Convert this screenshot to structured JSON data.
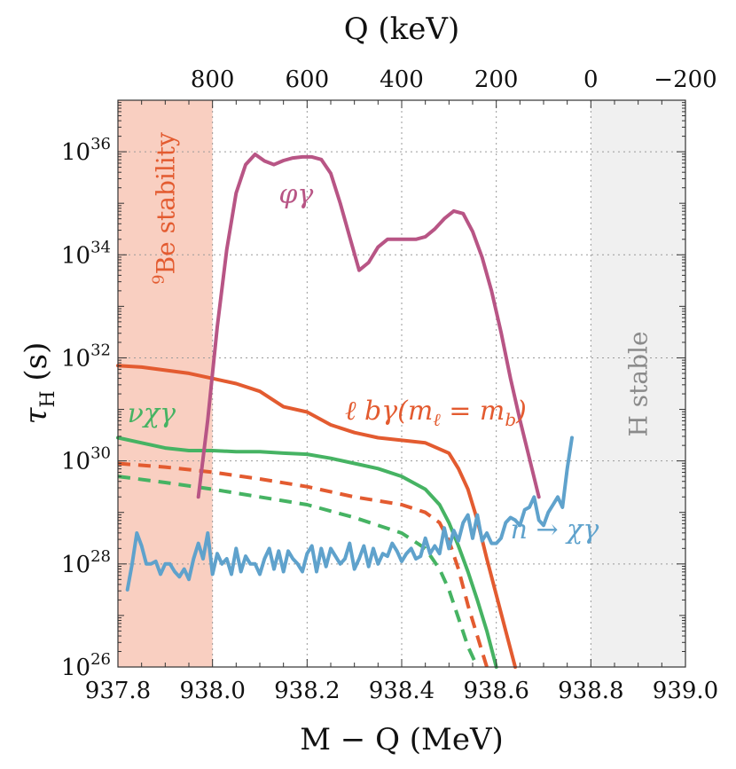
{
  "chart_data": {
    "type": "line",
    "xlabel": "M − Q (MeV)",
    "x2label": "Q (keV)",
    "ylabel": "τ_H (s)",
    "xlim": [
      937.8,
      939.0
    ],
    "ylim_log10": [
      26,
      37
    ],
    "x_log": false,
    "y_log": true,
    "grid": true,
    "x_ticks": [
      {
        "value": 937.8,
        "label": "937.8"
      },
      {
        "value": 938.0,
        "label": "938.0"
      },
      {
        "value": 938.2,
        "label": "938.2"
      },
      {
        "value": 938.4,
        "label": "938.4"
      },
      {
        "value": 938.6,
        "label": "938.6"
      },
      {
        "value": 938.8,
        "label": "938.8"
      },
      {
        "value": 939.0,
        "label": "939.0"
      }
    ],
    "x2_ticks": [
      {
        "value": 938.0,
        "label": "800"
      },
      {
        "value": 938.2,
        "label": "600"
      },
      {
        "value": 938.4,
        "label": "400"
      },
      {
        "value": 938.6,
        "label": "200"
      },
      {
        "value": 938.8,
        "label": "0"
      },
      {
        "value": 939.0,
        "label": "−200"
      }
    ],
    "y_ticks": [
      {
        "exp": 26,
        "base": "10",
        "sup": "26"
      },
      {
        "exp": 28,
        "base": "10",
        "sup": "28"
      },
      {
        "exp": 30,
        "base": "10",
        "sup": "30"
      },
      {
        "exp": 32,
        "base": "10",
        "sup": "32"
      },
      {
        "exp": 34,
        "base": "10",
        "sup": "34"
      },
      {
        "exp": 36,
        "base": "10",
        "sup": "36"
      }
    ],
    "bands": [
      {
        "x0": 937.8,
        "x1": 938.0,
        "color": "#f9cfc1",
        "label_sup": "9",
        "label": "Be stability",
        "label_color": "#e35b30"
      },
      {
        "x0": 938.8,
        "x1": 939.0,
        "color": "#f0f0f0",
        "label_sup": "",
        "label": "H stable",
        "label_color": "#8a8a8a"
      }
    ],
    "series": [
      {
        "key": "phi_gamma",
        "color": "#b85585",
        "dash": false,
        "label": "φγ",
        "x": [
          937.97,
          937.99,
          938.01,
          938.03,
          938.05,
          938.07,
          938.09,
          938.11,
          938.13,
          938.15,
          938.17,
          938.19,
          938.21,
          938.23,
          938.25,
          938.27,
          938.29,
          938.31,
          938.33,
          938.35,
          938.37,
          938.39,
          938.41,
          938.43,
          938.45,
          938.47,
          938.49,
          938.51,
          938.53,
          938.55,
          938.57,
          938.59,
          938.61,
          938.63,
          938.65,
          938.67,
          938.69
        ],
        "logy": [
          29.3,
          30.8,
          32.6,
          34.1,
          35.2,
          35.75,
          35.95,
          35.82,
          35.75,
          35.83,
          35.88,
          35.9,
          35.9,
          35.85,
          35.58,
          35.0,
          34.35,
          33.7,
          33.85,
          34.15,
          34.3,
          34.3,
          34.3,
          34.3,
          34.35,
          34.5,
          34.7,
          34.85,
          34.8,
          34.45,
          33.95,
          33.3,
          32.5,
          31.6,
          30.8,
          30.05,
          29.3
        ]
      },
      {
        "key": "lb_gamma",
        "color": "#e35b30",
        "dash": false,
        "label": "ℓ bγ(m_ℓ = m_b)",
        "x": [
          937.8,
          937.85,
          937.9,
          937.95,
          938.0,
          938.05,
          938.1,
          938.15,
          938.2,
          938.25,
          938.3,
          938.35,
          938.4,
          938.45,
          938.5,
          938.52,
          938.54,
          938.56,
          938.58,
          938.6,
          938.62,
          938.64
        ],
        "logy": [
          31.85,
          31.82,
          31.76,
          31.7,
          31.6,
          31.5,
          31.35,
          31.05,
          30.95,
          30.7,
          30.55,
          30.45,
          30.4,
          30.35,
          30.15,
          29.85,
          29.45,
          28.85,
          28.1,
          27.4,
          26.7,
          26.0
        ]
      },
      {
        "key": "nu_chi_gamma",
        "color": "#46b363",
        "dash": false,
        "label": "νχγ",
        "x": [
          937.8,
          937.85,
          937.9,
          937.95,
          938.0,
          938.05,
          938.1,
          938.15,
          938.2,
          938.25,
          938.3,
          938.35,
          938.4,
          938.45,
          938.48,
          938.5,
          938.52,
          938.54,
          938.56,
          938.58,
          938.6
        ],
        "logy": [
          30.45,
          30.35,
          30.25,
          30.2,
          30.2,
          30.18,
          30.18,
          30.15,
          30.13,
          30.05,
          29.95,
          29.85,
          29.7,
          29.45,
          29.15,
          28.8,
          28.35,
          27.85,
          27.3,
          26.7,
          26.0
        ]
      },
      {
        "key": "lb_gamma_dashed",
        "color": "#e35b30",
        "dash": true,
        "label": "",
        "x": [
          937.8,
          937.9,
          938.0,
          938.1,
          938.2,
          938.3,
          938.4,
          938.45,
          938.48,
          938.5,
          938.52,
          938.54,
          938.56,
          938.58
        ],
        "logy": [
          29.95,
          29.88,
          29.78,
          29.65,
          29.5,
          29.3,
          29.15,
          29.0,
          28.8,
          28.45,
          27.9,
          27.2,
          26.6,
          26.0
        ]
      },
      {
        "key": "nu_chi_gamma_dashed",
        "color": "#46b363",
        "dash": true,
        "label": "",
        "x": [
          937.8,
          937.9,
          938.0,
          938.1,
          938.2,
          938.3,
          938.4,
          938.45,
          938.48,
          938.5,
          938.52,
          938.54,
          938.56
        ],
        "logy": [
          29.7,
          29.58,
          29.45,
          29.3,
          29.15,
          28.9,
          28.6,
          28.3,
          27.9,
          27.5,
          26.95,
          26.4,
          26.0
        ]
      },
      {
        "key": "n_chi_gamma",
        "color": "#5fa2cc",
        "dash": false,
        "label": "n → χγ",
        "x": [
          937.82,
          937.83,
          937.84,
          937.85,
          937.86,
          937.87,
          937.88,
          937.89,
          937.9,
          937.91,
          937.92,
          937.93,
          937.94,
          937.95,
          937.96,
          937.97,
          937.98,
          937.99,
          938.0,
          938.01,
          938.02,
          938.03,
          938.04,
          938.05,
          938.06,
          938.07,
          938.08,
          938.09,
          938.1,
          938.11,
          938.12,
          938.13,
          938.14,
          938.15,
          938.16,
          938.17,
          938.18,
          938.19,
          938.2,
          938.21,
          938.22,
          938.23,
          938.24,
          938.25,
          938.26,
          938.27,
          938.28,
          938.29,
          938.3,
          938.31,
          938.32,
          938.33,
          938.34,
          938.35,
          938.36,
          938.37,
          938.38,
          938.39,
          938.4,
          938.41,
          938.42,
          938.43,
          938.44,
          938.45,
          938.46,
          938.47,
          938.48,
          938.49,
          938.5,
          938.51,
          938.52,
          938.53,
          938.54,
          938.55,
          938.56,
          938.57,
          938.58,
          938.59,
          938.6,
          938.61,
          938.62,
          938.63,
          938.64,
          938.65,
          938.66,
          938.67,
          938.68,
          938.69,
          938.7,
          938.71,
          938.72,
          938.73,
          938.74,
          938.75,
          938.76
        ],
        "logy": [
          27.5,
          28.0,
          28.6,
          28.35,
          28.0,
          28.0,
          28.05,
          27.8,
          28.0,
          28.0,
          27.85,
          27.75,
          27.9,
          27.7,
          28.1,
          28.4,
          28.1,
          28.6,
          27.8,
          28.2,
          28.0,
          28.1,
          27.8,
          28.3,
          27.85,
          28.15,
          28.0,
          28.0,
          27.8,
          28.1,
          28.3,
          27.9,
          28.25,
          27.85,
          28.25,
          28.1,
          28.0,
          27.85,
          28.2,
          28.35,
          27.85,
          28.3,
          27.95,
          28.3,
          28.15,
          28.0,
          28.1,
          28.4,
          27.9,
          28.1,
          28.35,
          27.95,
          28.3,
          28.0,
          28.2,
          28.15,
          28.4,
          28.25,
          28.05,
          28.2,
          28.3,
          28.1,
          28.15,
          28.5,
          28.2,
          28.35,
          28.2,
          28.7,
          28.3,
          28.65,
          28.45,
          28.8,
          28.95,
          28.5,
          28.95,
          28.45,
          28.6,
          28.4,
          28.4,
          28.5,
          28.8,
          28.9,
          28.85,
          28.75,
          29.05,
          29.1,
          29.3,
          28.85,
          28.75,
          29.0,
          29.15,
          29.3,
          29.1,
          29.85,
          30.45
        ]
      }
    ],
    "labels": [
      {
        "series": "phi_gamma",
        "text": "φγ",
        "x": 938.14,
        "logy": 35.0
      },
      {
        "series": "lb_gamma",
        "text": "ℓ bγ(m",
        "sub1": "ℓ",
        "text2": " = m",
        "sub2": "b",
        "text3": ")",
        "x": 938.28,
        "logy": 30.8
      },
      {
        "series": "nu_chi_gamma",
        "text": "νχγ",
        "x": 937.82,
        "logy": 30.75
      },
      {
        "series": "n_chi_gamma",
        "text": "n → χγ",
        "x": 938.63,
        "logy": 28.5
      }
    ]
  }
}
